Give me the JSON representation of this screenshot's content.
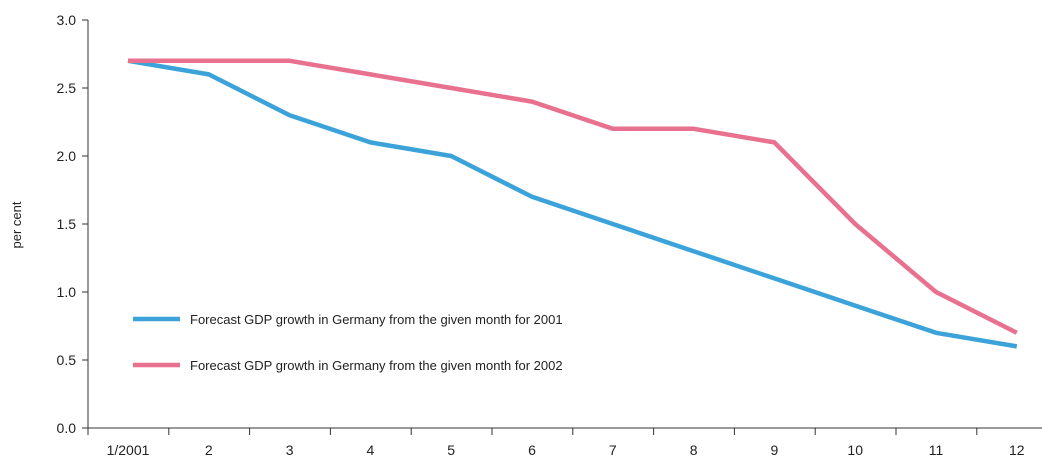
{
  "chart_data": {
    "type": "line",
    "categories": [
      "1/2001",
      "2",
      "3",
      "4",
      "5",
      "6",
      "7",
      "8",
      "9",
      "10",
      "11",
      "12"
    ],
    "ylabel": "per cent",
    "ylim": [
      0.0,
      3.0
    ],
    "yticks": [
      "0.0",
      "0.5",
      "1.0",
      "1.5",
      "2.0",
      "2.5",
      "3.0"
    ],
    "grid": false,
    "legend_position": "lower-left",
    "series": [
      {
        "name": "Forecast GDP growth in Germany from the given month for 2001",
        "color": "#3ba3d9",
        "values": [
          2.7,
          2.6,
          2.3,
          2.1,
          2.0,
          1.7,
          1.5,
          1.3,
          1.1,
          0.9,
          0.7,
          0.6
        ]
      },
      {
        "name": "Forecast GDP growth in Germany from the given month for 2002",
        "color": "#e8718f",
        "values": [
          2.7,
          2.7,
          2.7,
          2.6,
          2.5,
          2.4,
          2.2,
          2.2,
          2.1,
          1.5,
          1.0,
          0.7
        ]
      }
    ]
  }
}
